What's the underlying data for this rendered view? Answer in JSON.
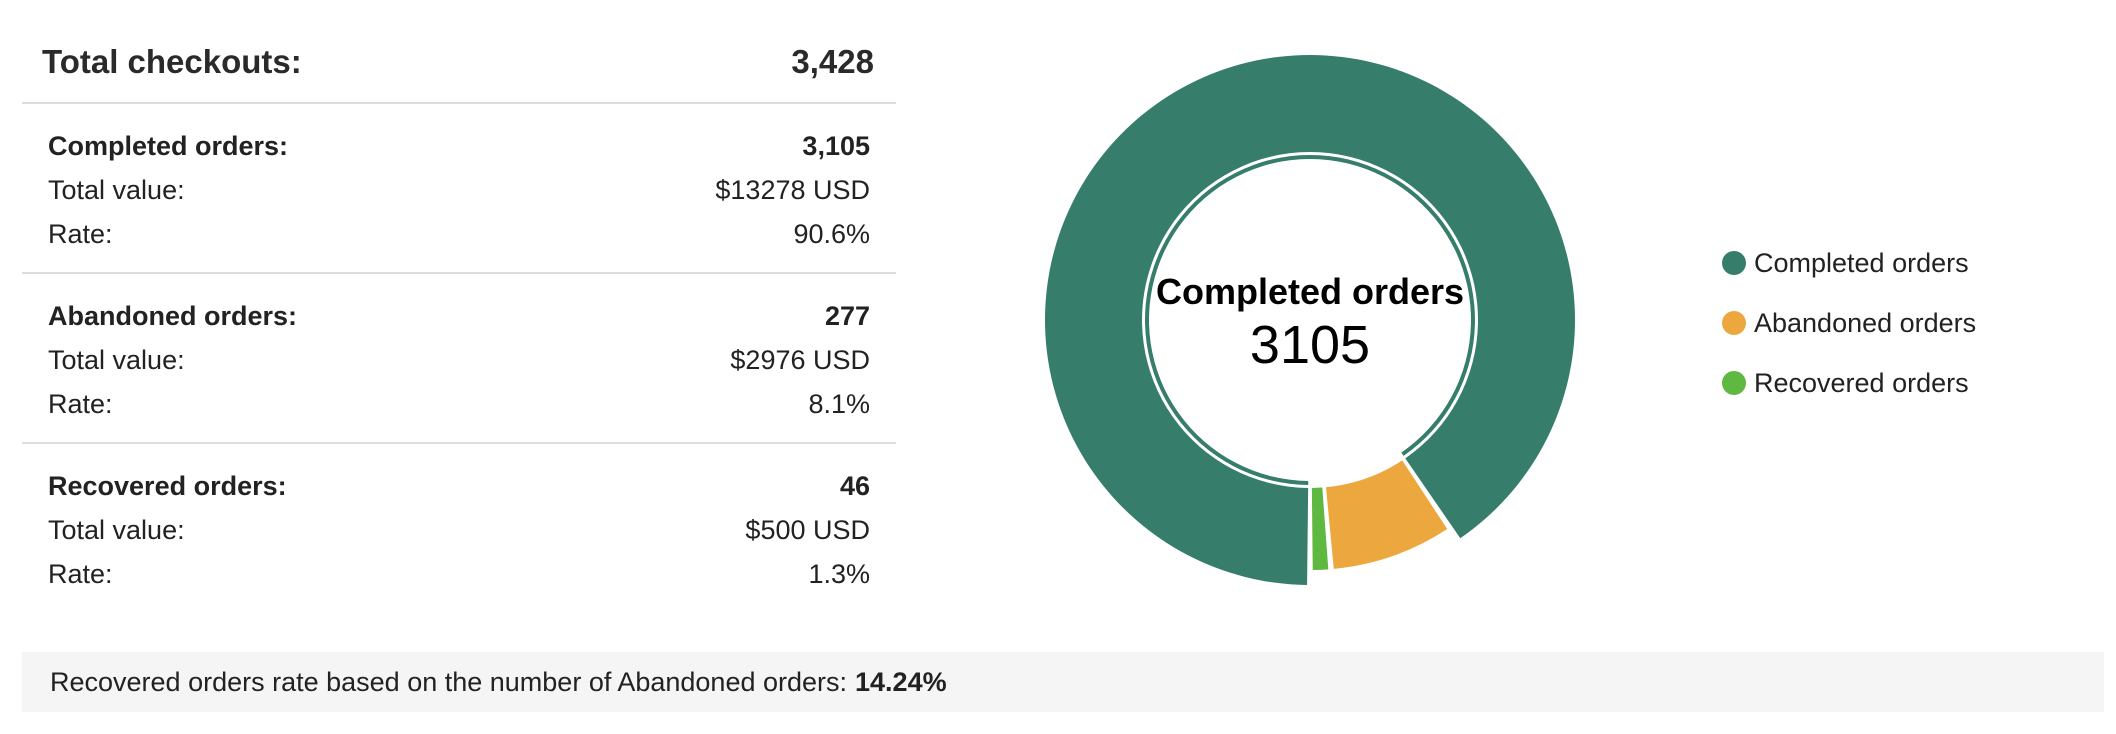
{
  "summary": {
    "total_label": "Total checkouts:",
    "total_value": "3,428",
    "groups": [
      {
        "title": "Completed orders:",
        "count": "3,105",
        "value_label": "Total value:",
        "value": "$13278 USD",
        "rate_label": "Rate:",
        "rate": "90.6%"
      },
      {
        "title": "Abandoned orders:",
        "count": "277",
        "value_label": "Total value:",
        "value": "$2976 USD",
        "rate_label": "Rate:",
        "rate": "8.1%"
      },
      {
        "title": "Recovered orders:",
        "count": "46",
        "value_label": "Total value:",
        "value": "$500 USD",
        "rate_label": "Rate:",
        "rate": "1.3%"
      }
    ]
  },
  "chart_data": {
    "type": "pie",
    "donut": true,
    "center_title": "Completed orders",
    "center_value": "3105",
    "slices": [
      {
        "name": "Completed orders",
        "value": 3105,
        "color": "#367d6b"
      },
      {
        "name": "Abandoned orders",
        "value": 277,
        "color": "#eca83e"
      },
      {
        "name": "Recovered orders",
        "value": 46,
        "color": "#5fb840"
      }
    ],
    "highlighted": "Completed orders",
    "legend_position": "right"
  },
  "footer": {
    "text": "Recovered orders rate based on the number of Abandoned orders:",
    "value": "14.24%"
  }
}
